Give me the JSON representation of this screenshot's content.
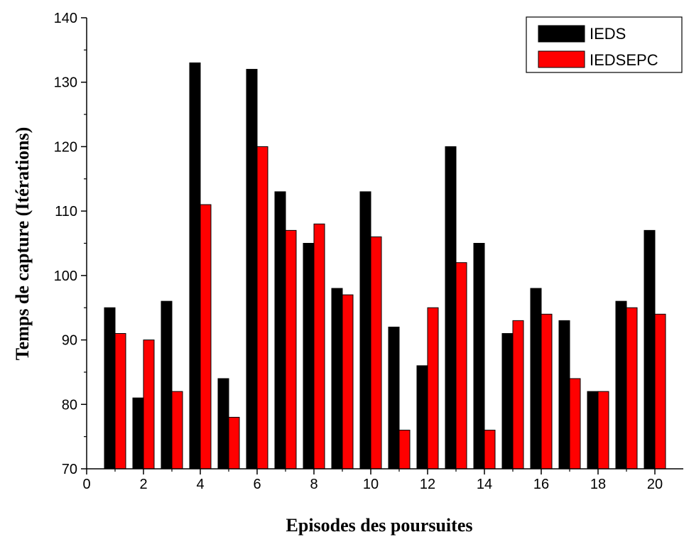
{
  "chart_data": {
    "type": "bar",
    "title": "",
    "xlabel": "Episodes des poursuites",
    "ylabel": "Temps de capture (Itérations)",
    "xlim": [
      0,
      21
    ],
    "ylim": [
      70,
      140
    ],
    "xticks": [
      0,
      2,
      4,
      6,
      8,
      10,
      12,
      14,
      16,
      18,
      20
    ],
    "yticks": [
      70,
      80,
      90,
      100,
      110,
      120,
      130,
      140
    ],
    "grid": false,
    "legend_position": "top-right",
    "x": [
      1,
      2,
      3,
      4,
      5,
      6,
      7,
      8,
      9,
      10,
      11,
      12,
      13,
      14,
      15,
      16,
      17,
      18,
      19,
      20
    ],
    "series": [
      {
        "name": "IEDS",
        "color": "#000000",
        "values": [
          95,
          81,
          96,
          133,
          84,
          132,
          113,
          105,
          98,
          113,
          92,
          86,
          120,
          105,
          91,
          98,
          93,
          82,
          96,
          107
        ]
      },
      {
        "name": "IEDSEPC",
        "color": "#ff0000",
        "values": [
          91,
          90,
          82,
          111,
          78,
          120,
          107,
          108,
          97,
          106,
          76,
          95,
          102,
          76,
          93,
          94,
          84,
          82,
          95,
          94
        ]
      }
    ]
  }
}
